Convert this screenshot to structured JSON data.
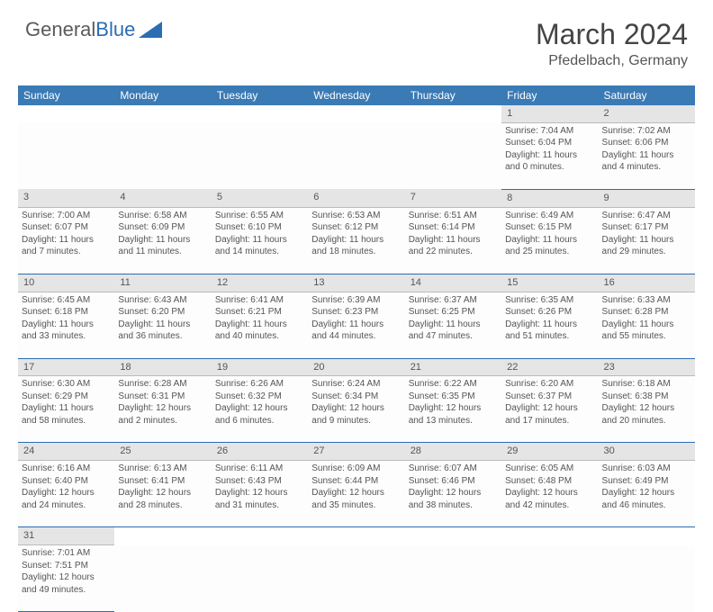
{
  "brand": {
    "name1": "General",
    "name2": "Blue"
  },
  "title": "March 2024",
  "location": "Pfedelbach, Germany",
  "colors": {
    "header_bg": "#3a7ab5",
    "row_divider": "#2a6db2",
    "daynum_bg": "#e5e5e5",
    "text": "#555555",
    "brand_gray": "#5a5a5a",
    "brand_blue": "#2a6db2"
  },
  "weekdays": [
    "Sunday",
    "Monday",
    "Tuesday",
    "Wednesday",
    "Thursday",
    "Friday",
    "Saturday"
  ],
  "startOffset": 5,
  "days": [
    {
      "n": 1,
      "sr": "7:04 AM",
      "ss": "6:04 PM",
      "dl": "11 hours and 0 minutes."
    },
    {
      "n": 2,
      "sr": "7:02 AM",
      "ss": "6:06 PM",
      "dl": "11 hours and 4 minutes."
    },
    {
      "n": 3,
      "sr": "7:00 AM",
      "ss": "6:07 PM",
      "dl": "11 hours and 7 minutes."
    },
    {
      "n": 4,
      "sr": "6:58 AM",
      "ss": "6:09 PM",
      "dl": "11 hours and 11 minutes."
    },
    {
      "n": 5,
      "sr": "6:55 AM",
      "ss": "6:10 PM",
      "dl": "11 hours and 14 minutes."
    },
    {
      "n": 6,
      "sr": "6:53 AM",
      "ss": "6:12 PM",
      "dl": "11 hours and 18 minutes."
    },
    {
      "n": 7,
      "sr": "6:51 AM",
      "ss": "6:14 PM",
      "dl": "11 hours and 22 minutes."
    },
    {
      "n": 8,
      "sr": "6:49 AM",
      "ss": "6:15 PM",
      "dl": "11 hours and 25 minutes."
    },
    {
      "n": 9,
      "sr": "6:47 AM",
      "ss": "6:17 PM",
      "dl": "11 hours and 29 minutes."
    },
    {
      "n": 10,
      "sr": "6:45 AM",
      "ss": "6:18 PM",
      "dl": "11 hours and 33 minutes."
    },
    {
      "n": 11,
      "sr": "6:43 AM",
      "ss": "6:20 PM",
      "dl": "11 hours and 36 minutes."
    },
    {
      "n": 12,
      "sr": "6:41 AM",
      "ss": "6:21 PM",
      "dl": "11 hours and 40 minutes."
    },
    {
      "n": 13,
      "sr": "6:39 AM",
      "ss": "6:23 PM",
      "dl": "11 hours and 44 minutes."
    },
    {
      "n": 14,
      "sr": "6:37 AM",
      "ss": "6:25 PM",
      "dl": "11 hours and 47 minutes."
    },
    {
      "n": 15,
      "sr": "6:35 AM",
      "ss": "6:26 PM",
      "dl": "11 hours and 51 minutes."
    },
    {
      "n": 16,
      "sr": "6:33 AM",
      "ss": "6:28 PM",
      "dl": "11 hours and 55 minutes."
    },
    {
      "n": 17,
      "sr": "6:30 AM",
      "ss": "6:29 PM",
      "dl": "11 hours and 58 minutes."
    },
    {
      "n": 18,
      "sr": "6:28 AM",
      "ss": "6:31 PM",
      "dl": "12 hours and 2 minutes."
    },
    {
      "n": 19,
      "sr": "6:26 AM",
      "ss": "6:32 PM",
      "dl": "12 hours and 6 minutes."
    },
    {
      "n": 20,
      "sr": "6:24 AM",
      "ss": "6:34 PM",
      "dl": "12 hours and 9 minutes."
    },
    {
      "n": 21,
      "sr": "6:22 AM",
      "ss": "6:35 PM",
      "dl": "12 hours and 13 minutes."
    },
    {
      "n": 22,
      "sr": "6:20 AM",
      "ss": "6:37 PM",
      "dl": "12 hours and 17 minutes."
    },
    {
      "n": 23,
      "sr": "6:18 AM",
      "ss": "6:38 PM",
      "dl": "12 hours and 20 minutes."
    },
    {
      "n": 24,
      "sr": "6:16 AM",
      "ss": "6:40 PM",
      "dl": "12 hours and 24 minutes."
    },
    {
      "n": 25,
      "sr": "6:13 AM",
      "ss": "6:41 PM",
      "dl": "12 hours and 28 minutes."
    },
    {
      "n": 26,
      "sr": "6:11 AM",
      "ss": "6:43 PM",
      "dl": "12 hours and 31 minutes."
    },
    {
      "n": 27,
      "sr": "6:09 AM",
      "ss": "6:44 PM",
      "dl": "12 hours and 35 minutes."
    },
    {
      "n": 28,
      "sr": "6:07 AM",
      "ss": "6:46 PM",
      "dl": "12 hours and 38 minutes."
    },
    {
      "n": 29,
      "sr": "6:05 AM",
      "ss": "6:48 PM",
      "dl": "12 hours and 42 minutes."
    },
    {
      "n": 30,
      "sr": "6:03 AM",
      "ss": "6:49 PM",
      "dl": "12 hours and 46 minutes."
    },
    {
      "n": 31,
      "sr": "7:01 AM",
      "ss": "7:51 PM",
      "dl": "12 hours and 49 minutes."
    }
  ],
  "labels": {
    "sunrise": "Sunrise:",
    "sunset": "Sunset:",
    "daylight": "Daylight:"
  }
}
